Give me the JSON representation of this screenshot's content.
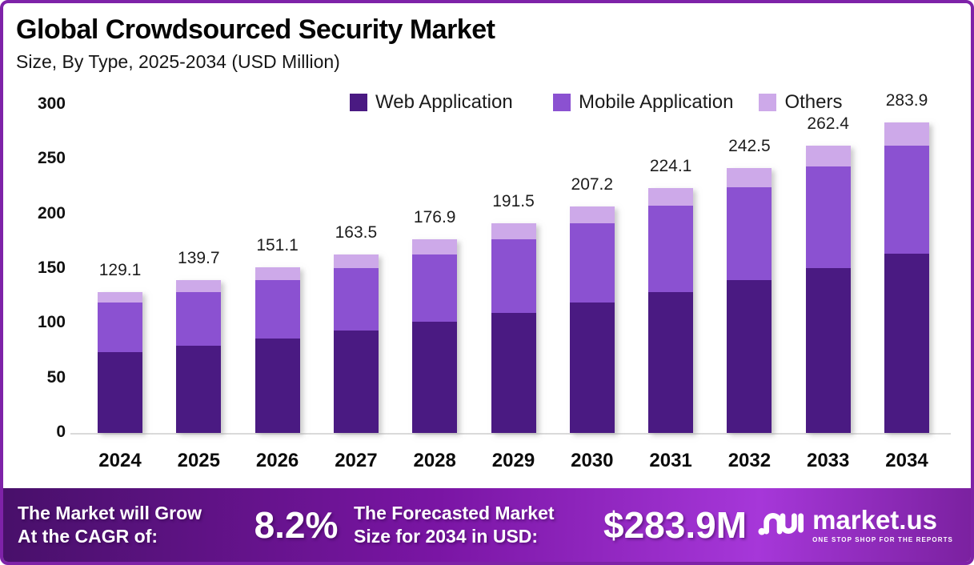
{
  "header": {
    "title": "Global Crowdsourced Security Market",
    "subtitle": "Size, By Type, 2025-2034 (USD Million)"
  },
  "frame": {
    "border_color": "#7e22a8",
    "background": "#ffffff"
  },
  "chart_data": {
    "type": "bar",
    "stacked": true,
    "title": "Global Crowdsourced Security Market Size, By Type, 2025-2034 (USD Million)",
    "categories": [
      "2024",
      "2025",
      "2026",
      "2027",
      "2028",
      "2029",
      "2030",
      "2031",
      "2032",
      "2033",
      "2034"
    ],
    "series": [
      {
        "name": "Web Application",
        "color": "#4a1a82",
        "values": [
          74.0,
          80.0,
          86.5,
          93.7,
          101.5,
          109.8,
          119.0,
          128.8,
          139.8,
          150.7,
          163.9
        ]
      },
      {
        "name": "Mobile Application",
        "color": "#8b51d1",
        "values": [
          45.1,
          48.8,
          53.3,
          57.0,
          61.7,
          67.3,
          72.7,
          79.0,
          84.8,
          93.0,
          98.8
        ]
      },
      {
        "name": "Others",
        "color": "#cda9e9",
        "values": [
          10.0,
          10.9,
          11.3,
          12.8,
          13.7,
          14.4,
          15.5,
          16.3,
          17.9,
          18.7,
          21.2
        ]
      }
    ],
    "totals": [
      129.1,
      139.7,
      151.1,
      163.5,
      176.9,
      191.5,
      207.2,
      224.1,
      242.5,
      262.4,
      283.9
    ],
    "ylim": [
      0,
      300
    ],
    "yticks": [
      0,
      50,
      100,
      150,
      200,
      250,
      300
    ],
    "grid": false,
    "legend_position": "top-center",
    "value_labels": "total-above-bar"
  },
  "banner": {
    "cagr_label_line1": "The Market will Grow",
    "cagr_label_line2": "At the CAGR of:",
    "cagr_value": "8.2%",
    "forecast_label_line1": "The Forecasted Market",
    "forecast_label_line2": "Size for 2034 in USD:",
    "forecast_value": "$283.9M",
    "logo": {
      "name": "market.us",
      "tagline": "ONE STOP SHOP FOR THE REPORTS"
    },
    "gradient": [
      "#48106a",
      "#7a15a4",
      "#a637d9",
      "#7b21a0"
    ]
  }
}
